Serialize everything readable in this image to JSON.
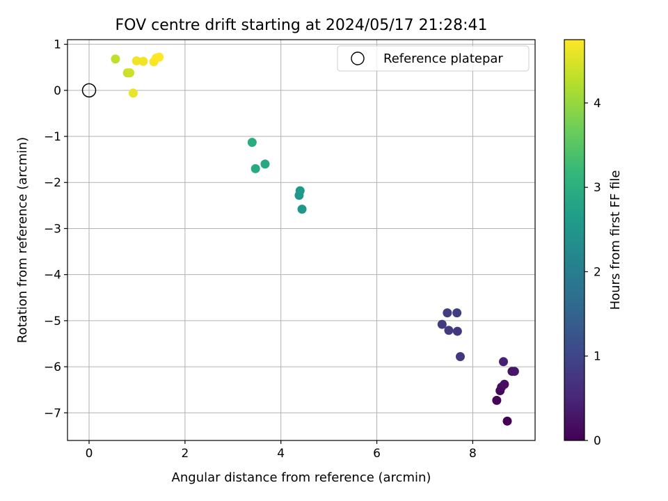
{
  "chart_data": {
    "type": "scatter",
    "title": "FOV centre drift starting at 2024/05/17 21:28:41",
    "xlabel": "Angular distance from reference (arcmin)",
    "ylabel": "Rotation from reference (arcmin)",
    "xlim": [
      -0.45,
      9.3
    ],
    "ylim": [
      -7.6,
      1.1
    ],
    "xticks": [
      0,
      2,
      4,
      6,
      8
    ],
    "yticks": [
      1,
      0,
      -1,
      -2,
      -3,
      -4,
      -5,
      -6,
      -7
    ],
    "xtick_labels": [
      "0",
      "2",
      "4",
      "6",
      "8"
    ],
    "ytick_labels": [
      "1",
      "0",
      "−1",
      "−2",
      "−3",
      "−4",
      "−5",
      "−6",
      "−7"
    ],
    "grid": true,
    "legend": {
      "location": "upper right",
      "entries": [
        "Reference platepar"
      ]
    },
    "reference_point": {
      "x": 0,
      "y": 0,
      "style": "open circle"
    },
    "colorbar": {
      "label": "Hours from first FF file",
      "range": [
        0,
        4.75
      ],
      "ticks": [
        0,
        1,
        2,
        3,
        4
      ],
      "tick_labels": [
        "0",
        "1",
        "2",
        "3",
        "4"
      ],
      "colormap": "viridis"
    },
    "points": [
      {
        "x": 8.72,
        "y": -7.18,
        "hours": 0.0
      },
      {
        "x": 8.5,
        "y": -6.73,
        "hours": 0.05
      },
      {
        "x": 8.57,
        "y": -6.52,
        "hours": 0.1
      },
      {
        "x": 8.6,
        "y": -6.44,
        "hours": 0.15
      },
      {
        "x": 8.66,
        "y": -6.38,
        "hours": 0.2
      },
      {
        "x": 8.82,
        "y": -6.1,
        "hours": 0.25
      },
      {
        "x": 8.87,
        "y": -6.1,
        "hours": 0.3
      },
      {
        "x": 8.64,
        "y": -5.89,
        "hours": 0.4
      },
      {
        "x": 7.74,
        "y": -5.78,
        "hours": 0.75
      },
      {
        "x": 7.68,
        "y": -5.23,
        "hours": 0.78
      },
      {
        "x": 7.5,
        "y": -5.21,
        "hours": 0.8
      },
      {
        "x": 7.36,
        "y": -5.08,
        "hours": 0.82
      },
      {
        "x": 7.47,
        "y": -4.83,
        "hours": 0.85
      },
      {
        "x": 7.67,
        "y": -4.83,
        "hours": 0.88
      },
      {
        "x": 4.38,
        "y": -2.28,
        "hours": 2.5
      },
      {
        "x": 4.4,
        "y": -2.18,
        "hours": 2.55
      },
      {
        "x": 4.44,
        "y": -2.58,
        "hours": 2.5
      },
      {
        "x": 3.4,
        "y": -1.13,
        "hours": 2.95
      },
      {
        "x": 3.47,
        "y": -1.7,
        "hours": 2.9
      },
      {
        "x": 3.67,
        "y": -1.6,
        "hours": 2.85
      },
      {
        "x": 0.55,
        "y": 0.68,
        "hours": 4.3
      },
      {
        "x": 0.8,
        "y": 0.38,
        "hours": 4.35
      },
      {
        "x": 0.85,
        "y": 0.38,
        "hours": 4.4
      },
      {
        "x": 0.92,
        "y": -0.06,
        "hours": 4.6
      },
      {
        "x": 0.99,
        "y": 0.64,
        "hours": 4.65
      },
      {
        "x": 1.13,
        "y": 0.63,
        "hours": 4.65
      },
      {
        "x": 1.35,
        "y": 0.62,
        "hours": 4.7
      },
      {
        "x": 1.4,
        "y": 0.7,
        "hours": 4.75
      },
      {
        "x": 1.46,
        "y": 0.72,
        "hours": 4.75
      }
    ]
  }
}
